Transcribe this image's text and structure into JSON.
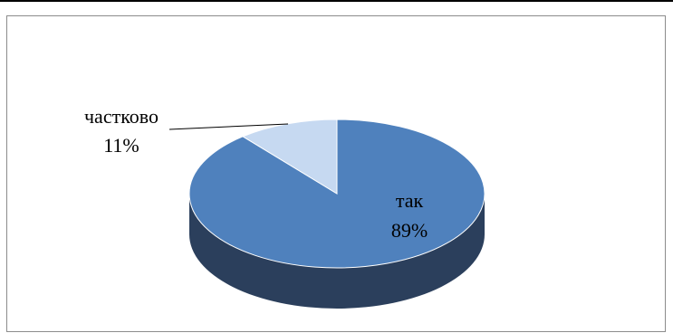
{
  "chart_data": {
    "type": "pie",
    "style": "3d",
    "title": "",
    "slices": [
      {
        "label": "так",
        "value": 89,
        "percent_label": "89%",
        "color": "#4f81bd",
        "side_color": "#2b3f5c"
      },
      {
        "label": "частково",
        "value": 11,
        "percent_label": "11%",
        "color": "#c6d9f1",
        "side_color": "#8a98aa"
      }
    ],
    "legend": "none",
    "data_labels": "category and percentage"
  }
}
